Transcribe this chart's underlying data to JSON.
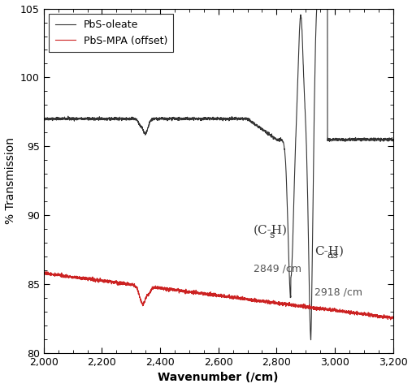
{
  "xlim": [
    2000,
    3200
  ],
  "ylim": [
    80,
    105
  ],
  "xlabel": "Wavenumber (/cm)",
  "ylabel": "% Transmission",
  "black_line_color": "#333333",
  "red_line_color": "#cc2222",
  "legend_labels": [
    "PbS-oleate",
    "PbS-MPA (offset)"
  ],
  "xticks": [
    2000,
    2200,
    2400,
    2600,
    2800,
    3000,
    3200
  ],
  "yticks": [
    80,
    85,
    90,
    95,
    100,
    105
  ],
  "background_color": "#ffffff"
}
